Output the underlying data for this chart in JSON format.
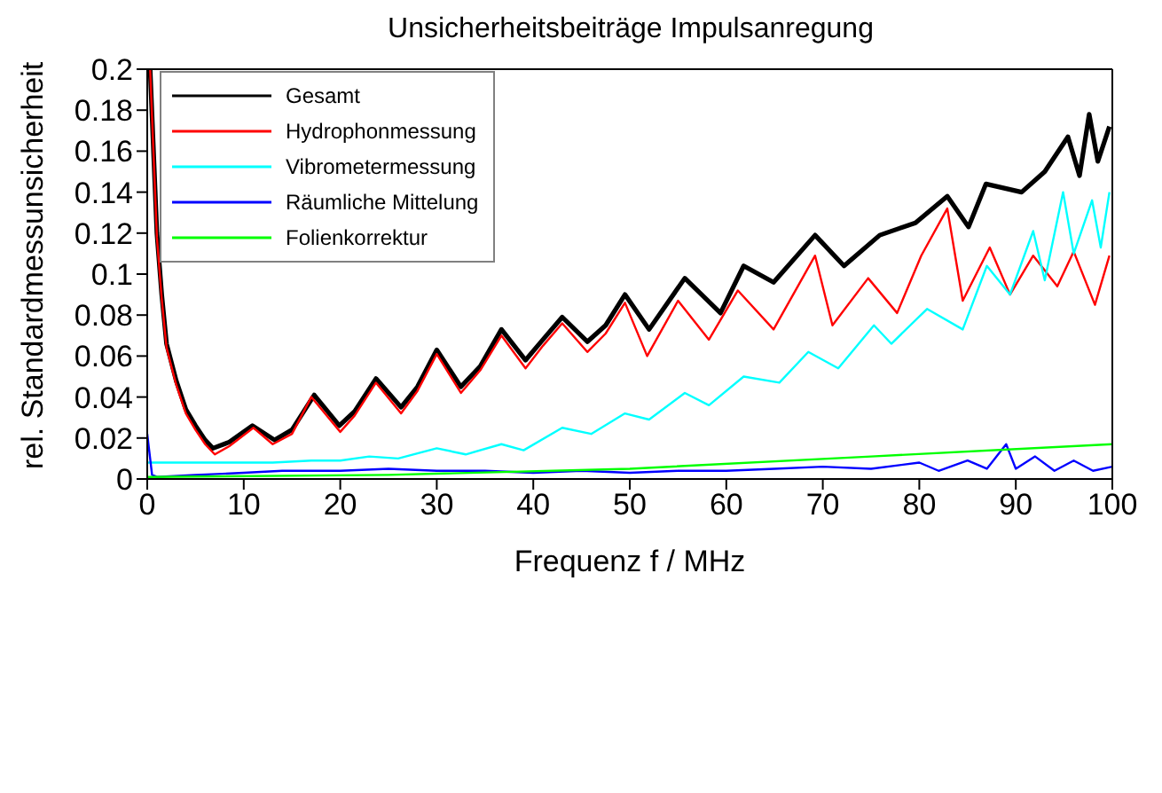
{
  "chart_data": {
    "type": "line",
    "title": "Unsicherheitsbeiträge Impulsanregung",
    "xlabel": "Frequenz f / MHz",
    "ylabel": "rel. Standardmessunsicherheit",
    "xlim": [
      0,
      100
    ],
    "ylim": [
      0,
      0.2
    ],
    "xticks": [
      0,
      10,
      20,
      30,
      40,
      50,
      60,
      70,
      80,
      90,
      100
    ],
    "yticks": [
      0,
      0.02,
      0.04,
      0.06,
      0.08,
      0.1,
      0.12,
      0.14,
      0.16,
      0.18,
      0.2
    ],
    "legend": "top left",
    "series": [
      {
        "name": "Gesamt",
        "color": "#000000",
        "x": [
          0.3,
          1,
          1.5,
          2,
          3,
          4,
          5,
          6,
          6.8,
          8.5,
          10.9,
          13.2,
          15,
          17.3,
          19.9,
          21.5,
          23.7,
          26.3,
          28,
          30,
          32.5,
          34.5,
          36.7,
          39.2,
          41,
          43,
          45.6,
          47.5,
          49.5,
          52,
          55.7,
          59.4,
          61.8,
          64.9,
          69.2,
          72.2,
          75.9,
          79.6,
          82.9,
          85.1,
          86.9,
          90.6,
          93,
          95.4,
          96.6,
          97.6,
          98.5,
          99.7
        ],
        "values": [
          0.2,
          0.12,
          0.09,
          0.066,
          0.048,
          0.034,
          0.026,
          0.019,
          0.015,
          0.018,
          0.026,
          0.019,
          0.024,
          0.041,
          0.026,
          0.033,
          0.049,
          0.035,
          0.045,
          0.063,
          0.045,
          0.055,
          0.073,
          0.058,
          0.068,
          0.079,
          0.067,
          0.075,
          0.09,
          0.073,
          0.098,
          0.081,
          0.104,
          0.096,
          0.119,
          0.104,
          0.119,
          0.125,
          0.138,
          0.123,
          0.144,
          0.14,
          0.15,
          0.167,
          0.148,
          0.178,
          0.155,
          0.172
        ]
      },
      {
        "name": "Hydrophonmessung",
        "color": "#ff0000",
        "x": [
          0.3,
          1,
          1.5,
          2,
          3,
          4,
          5,
          6,
          7,
          8.5,
          11,
          13,
          15,
          17,
          20,
          21.5,
          23.7,
          26.3,
          28,
          30,
          32.5,
          34.5,
          36.7,
          39.2,
          41,
          43,
          45.6,
          47.5,
          49.5,
          51.8,
          55,
          58.2,
          61.2,
          64.9,
          69.2,
          71,
          74.7,
          77.7,
          80.2,
          82.9,
          84.5,
          87.3,
          89.4,
          91.8,
          94.3,
          96,
          98.2,
          99.7
        ],
        "values": [
          0.2,
          0.118,
          0.088,
          0.064,
          0.046,
          0.032,
          0.024,
          0.017,
          0.012,
          0.016,
          0.025,
          0.017,
          0.022,
          0.04,
          0.023,
          0.031,
          0.047,
          0.032,
          0.043,
          0.061,
          0.042,
          0.053,
          0.07,
          0.054,
          0.065,
          0.076,
          0.062,
          0.071,
          0.086,
          0.06,
          0.087,
          0.068,
          0.092,
          0.073,
          0.109,
          0.075,
          0.098,
          0.081,
          0.109,
          0.132,
          0.087,
          0.113,
          0.09,
          0.109,
          0.094,
          0.111,
          0.085,
          0.109
        ]
      },
      {
        "name": "Vibrometermessung",
        "color": "#00ffff",
        "x": [
          0,
          10,
          13,
          17,
          20,
          23,
          26,
          30,
          33,
          36.7,
          39,
          43,
          46,
          49.5,
          52,
          55.7,
          58.2,
          61.8,
          65.5,
          68.5,
          71.6,
          75.3,
          77.1,
          80.8,
          84.5,
          87,
          89.4,
          91.8,
          93,
          94.9,
          96,
          97.9,
          98.8,
          99.7
        ],
        "values": [
          0.008,
          0.008,
          0.008,
          0.009,
          0.009,
          0.011,
          0.01,
          0.015,
          0.012,
          0.017,
          0.014,
          0.025,
          0.022,
          0.032,
          0.029,
          0.042,
          0.036,
          0.05,
          0.047,
          0.062,
          0.054,
          0.075,
          0.066,
          0.083,
          0.073,
          0.104,
          0.09,
          0.121,
          0.097,
          0.14,
          0.11,
          0.136,
          0.113,
          0.14
        ]
      },
      {
        "name": "Räumliche Mittelung",
        "color": "#0000ff",
        "x": [
          0,
          0.5,
          1,
          5,
          10,
          14,
          20,
          25,
          30,
          35,
          40,
          45,
          50,
          55,
          60,
          65,
          70,
          75,
          80,
          82,
          85,
          87,
          89,
          90,
          92,
          94,
          96,
          98,
          100
        ],
        "values": [
          0.022,
          0.002,
          0.001,
          0.002,
          0.003,
          0.004,
          0.004,
          0.005,
          0.004,
          0.004,
          0.003,
          0.004,
          0.003,
          0.004,
          0.004,
          0.005,
          0.006,
          0.005,
          0.008,
          0.004,
          0.009,
          0.005,
          0.017,
          0.005,
          0.011,
          0.004,
          0.009,
          0.004,
          0.006
        ]
      },
      {
        "name": "Folienkorrektur",
        "color": "#00ff00",
        "x": [
          0,
          25,
          50,
          75,
          100
        ],
        "values": [
          0.001,
          0.002,
          0.005,
          0.011,
          0.017
        ]
      }
    ]
  }
}
